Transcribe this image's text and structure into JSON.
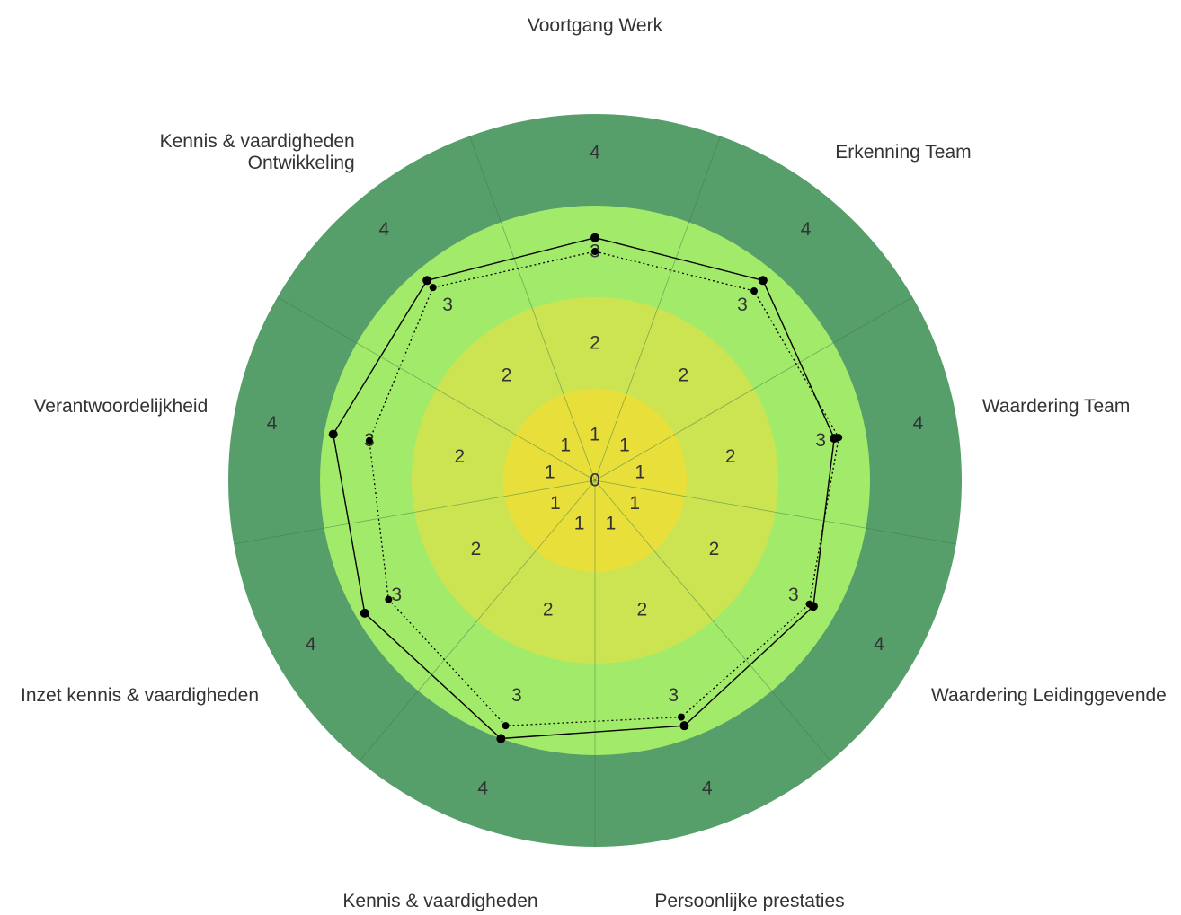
{
  "chart_data": {
    "type": "radar",
    "title": "",
    "axes": [
      "Voortgang Werk",
      "Erkenning Team",
      "Waardering Team",
      "Waardering Leidinggevende",
      "Persoonlijke prestaties",
      "Kennis & vaardigheden",
      "Inzet kennis & vaardigheden",
      "Verantwoordelijkheid",
      "Kennis & vaardigheden\nOntwikkeling"
    ],
    "rlim": [
      0,
      4
    ],
    "ticks": [
      "0",
      "1",
      "2",
      "3",
      "4"
    ],
    "band_colors": [
      "#e9df3a",
      "#cde452",
      "#a2ea6a",
      "#569e6a"
    ],
    "series": [
      {
        "values": [
          2.65,
          2.85,
          2.65,
          2.75,
          2.85,
          3.0,
          2.9,
          2.9,
          2.85
        ],
        "style": "solid",
        "color": "#000000"
      },
      {
        "values": [
          2.5,
          2.7,
          2.7,
          2.7,
          2.75,
          2.85,
          2.6,
          2.5,
          2.75
        ],
        "style": "dotted",
        "color": "#000000"
      }
    ]
  }
}
